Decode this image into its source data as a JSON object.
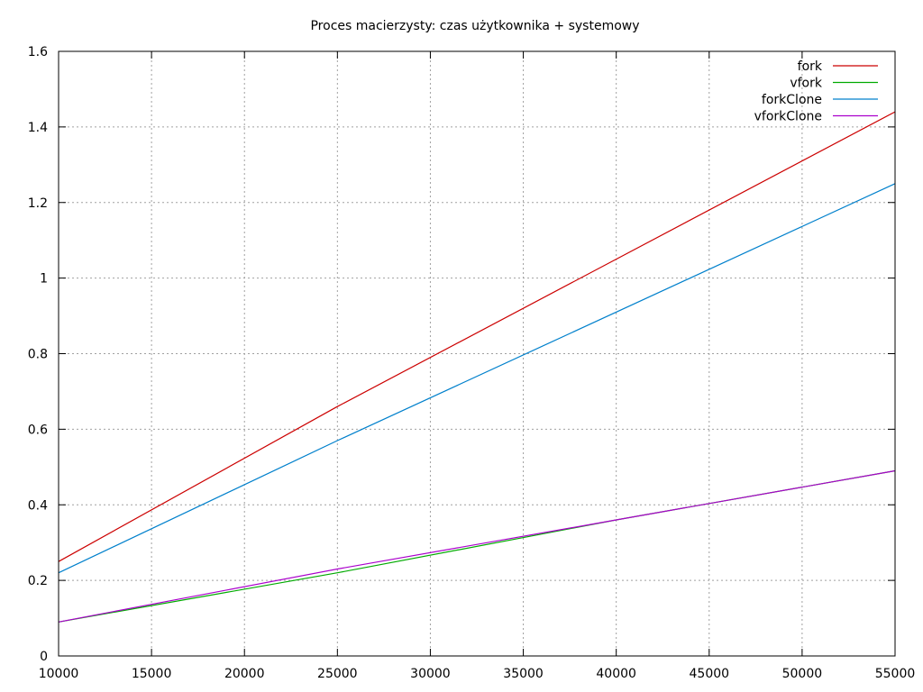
{
  "chart_data": {
    "type": "line",
    "title": "Proces macierzysty: czas użytkownika + systemowy",
    "xlabel": "",
    "ylabel": "",
    "xlim": [
      10000,
      55000
    ],
    "ylim": [
      0,
      1.6
    ],
    "x_ticks": [
      10000,
      15000,
      20000,
      25000,
      30000,
      35000,
      40000,
      45000,
      50000,
      55000
    ],
    "y_ticks": [
      0,
      0.2,
      0.4,
      0.6,
      0.8,
      1,
      1.2,
      1.4,
      1.6
    ],
    "x_tick_labels": [
      "10000",
      "15000",
      "20000",
      "25000",
      "30000",
      "35000",
      "40000",
      "45000",
      "50000",
      "55000"
    ],
    "y_tick_labels": [
      "0",
      "0.2",
      "0.4",
      "0.6",
      "0.8",
      "1",
      "1.2",
      "1.4",
      "1.6"
    ],
    "grid": true,
    "legend_position": "top-right",
    "series": [
      {
        "name": "fork",
        "color": "#cc0000",
        "points": [
          [
            10000,
            0.25
          ],
          [
            25000,
            0.66
          ],
          [
            55000,
            1.44
          ]
        ]
      },
      {
        "name": "vfork",
        "color": "#00aa00",
        "points": [
          [
            10000,
            0.09
          ],
          [
            25000,
            0.22
          ],
          [
            40000,
            0.36
          ],
          [
            55000,
            0.49
          ]
        ]
      },
      {
        "name": "forkClone",
        "color": "#0080cc",
        "points": [
          [
            10000,
            0.22
          ],
          [
            25000,
            0.57
          ],
          [
            55000,
            1.25
          ]
        ]
      },
      {
        "name": "vforkClone",
        "color": "#aa00cc",
        "points": [
          [
            10000,
            0.09
          ],
          [
            25000,
            0.23
          ],
          [
            40000,
            0.36
          ],
          [
            55000,
            0.49
          ]
        ]
      }
    ]
  }
}
